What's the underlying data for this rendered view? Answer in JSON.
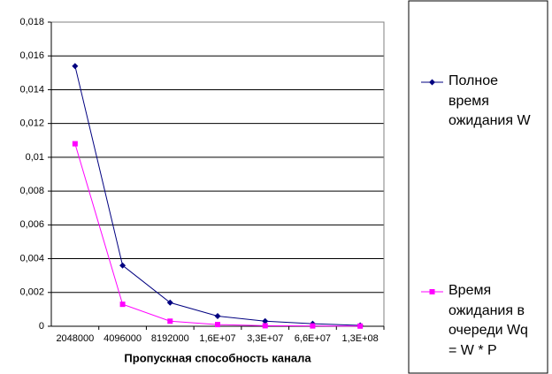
{
  "chart_data": {
    "type": "line",
    "x_label": "Пропускная способность канала",
    "categories": [
      "2048000",
      "4096000",
      "8192000",
      "1,6E+07",
      "3,3E+07",
      "6,6E+07",
      "1,3E+08"
    ],
    "series": [
      {
        "name": "Полное время ожидания W",
        "color": "#000080",
        "marker": "diamond",
        "values": [
          0.0154,
          0.0036,
          0.0014,
          0.0006,
          0.0003,
          0.00015,
          5e-05
        ]
      },
      {
        "name": "Время ожидания в очереди Wq = W * P",
        "color": "#ff00ff",
        "marker": "square",
        "values": [
          0.0108,
          0.0013,
          0.0003,
          0.0001,
          3e-05,
          2e-05,
          1e-05
        ]
      }
    ],
    "ylim": [
      0,
      0.018
    ],
    "yticks": [
      0,
      {
        "value": 0.002,
        "label": "0,002"
      },
      {
        "value": 0.004,
        "label": "0,004"
      },
      {
        "value": 0.006,
        "label": "0,006"
      },
      {
        "value": 0.008,
        "label": "0,008"
      },
      {
        "value": 0.01,
        "label": "0,01"
      },
      {
        "value": 0.012,
        "label": "0,012"
      },
      {
        "value": 0.014,
        "label": "0,014"
      },
      {
        "value": 0.016,
        "label": "0,016"
      },
      {
        "value": 0.018,
        "label": "0,018"
      }
    ],
    "grid": true
  }
}
